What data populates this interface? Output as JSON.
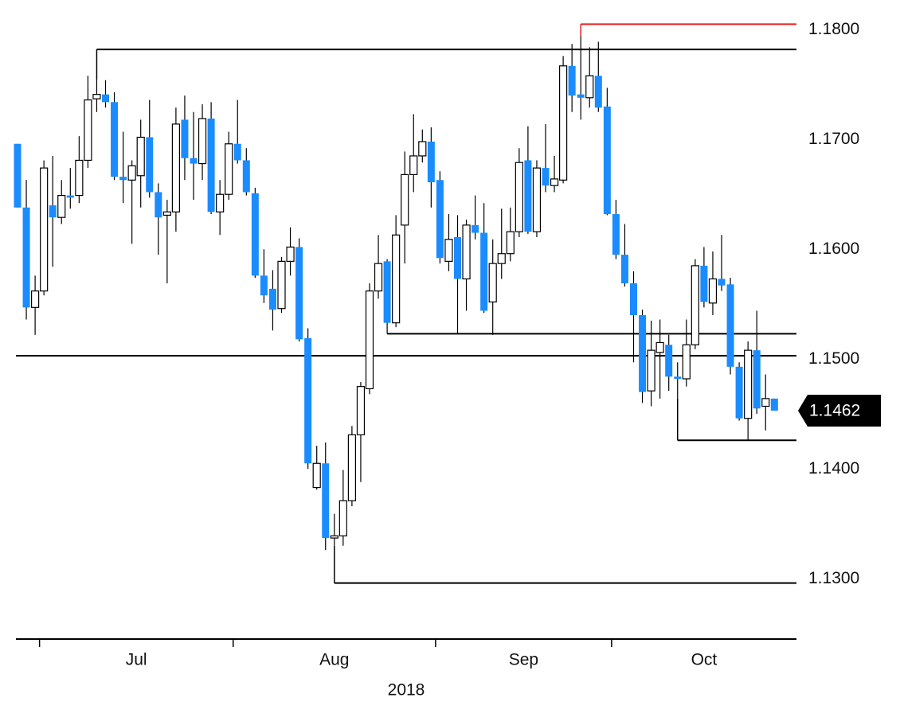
{
  "chart_data": {
    "type": "candlestick",
    "up_color": "#ffffff",
    "down_color": "#1a8cff",
    "ylim": [
      1.1254,
      1.1836
    ],
    "yticks": [
      {
        "value": 1.18,
        "label": "1.1800"
      },
      {
        "value": 1.17,
        "label": "1.1700"
      },
      {
        "value": 1.16,
        "label": "1.1600"
      },
      {
        "value": 1.15,
        "label": "1.1500"
      },
      {
        "value": 1.14,
        "label": "1.1400"
      },
      {
        "value": 1.13,
        "label": "1.1300"
      }
    ],
    "months": [
      {
        "label": "Jul",
        "start": 3
      },
      {
        "label": "Aug",
        "start": 25
      },
      {
        "label": "Sep",
        "start": 48
      },
      {
        "label": "Oct",
        "start": 68
      }
    ],
    "year": "2018",
    "last_price": {
      "value": 1.1462,
      "label": "1.1462"
    },
    "levels": [
      {
        "value": 1.1814,
        "color": "#e8201c",
        "start": 64
      },
      {
        "value": 1.1791,
        "color": "#000000",
        "start": 9
      },
      {
        "value": 1.1532,
        "color": "#000000",
        "start": 42
      },
      {
        "value": 1.1512,
        "color": "#000000",
        "start": 0
      },
      {
        "value": 1.1435,
        "color": "#000000",
        "start": 75
      },
      {
        "value": 1.1305,
        "color": "#000000",
        "start": 36
      }
    ],
    "open": [
      1.1705,
      1.1647,
      1.1556,
      1.1571,
      1.1649,
      1.1638,
      1.1658,
      1.1658,
      1.169,
      1.1746,
      1.175,
      1.1743,
      1.1675,
      1.1672,
      1.1676,
      1.1711,
      1.1661,
      1.164,
      1.1643,
      1.1727,
      1.1692,
      1.1687,
      1.1728,
      1.1643,
      1.1659,
      1.1705,
      1.169,
      1.166,
      1.1585,
      1.1573,
      1.1555,
      1.1598,
      1.1611,
      1.1528,
      1.1392,
      1.1414,
      1.1346,
      1.1348,
      1.138,
      1.144,
      1.1482,
      1.1571,
      1.1598,
      1.1542,
      1.1631,
      1.1677,
      1.1694,
      1.1707,
      1.1672,
      1.1598,
      1.162,
      1.1582,
      1.1631,
      1.1624,
      1.1561,
      1.1596,
      1.1605,
      1.1625,
      1.169,
      1.1625,
      1.1683,
      1.1667,
      1.1672,
      1.1776,
      1.175,
      1.1747,
      1.1767,
      1.1739,
      1.1641,
      1.1604,
      1.1578,
      1.1549,
      1.148,
      1.1515,
      1.1522,
      1.1493,
      1.1491,
      1.1522,
      1.1594,
      1.156,
      1.1582,
      1.1577,
      1.1502,
      1.1455,
      1.1517,
      1.1466,
      1.1473
    ],
    "high": [
      1.1705,
      1.1672,
      1.1585,
      1.169,
      1.1694,
      1.1672,
      1.1683,
      1.1712,
      1.1767,
      1.1763,
      1.1763,
      1.1752,
      1.1716,
      1.169,
      1.1727,
      1.1745,
      1.1669,
      1.1654,
      1.1738,
      1.1749,
      1.1734,
      1.1741,
      1.1743,
      1.1672,
      1.1716,
      1.1745,
      1.1701,
      1.1665,
      1.1609,
      1.159,
      1.1602,
      1.1629,
      1.1619,
      1.1537,
      1.143,
      1.1433,
      1.1368,
      1.1408,
      1.1448,
      1.1488,
      1.1578,
      1.1622,
      1.16,
      1.164,
      1.1698,
      1.1732,
      1.1718,
      1.172,
      1.168,
      1.1641,
      1.164,
      1.1636,
      1.1658,
      1.1651,
      1.1618,
      1.1646,
      1.1647,
      1.1701,
      1.1721,
      1.169,
      1.1723,
      1.1694,
      1.1785,
      1.1796,
      1.1803,
      1.1793,
      1.1798,
      1.1756,
      1.1654,
      1.1632,
      1.1589,
      1.1554,
      1.1544,
      1.1545,
      1.1531,
      1.1506,
      1.1545,
      1.16,
      1.1611,
      1.1607,
      1.1622,
      1.1583,
      1.1506,
      1.1525,
      1.1553,
      1.1495,
      1.1473
    ],
    "low": [
      1.1647,
      1.1545,
      1.1531,
      1.1567,
      1.1593,
      1.1632,
      1.1646,
      1.1651,
      1.1683,
      1.1734,
      1.1738,
      1.1672,
      1.1651,
      1.1614,
      1.1647,
      1.1656,
      1.1604,
      1.1578,
      1.1625,
      1.1672,
      1.1654,
      1.1672,
      1.1641,
      1.1622,
      1.1654,
      1.1687,
      1.1658,
      1.1583,
      1.156,
      1.1535,
      1.1551,
      1.1585,
      1.1525,
      1.1409,
      1.139,
      1.1335,
      1.1339,
      1.1339,
      1.1375,
      1.1397,
      1.1477,
      1.1564,
      1.1532,
      1.1538,
      1.1596,
      1.1661,
      1.1688,
      1.1647,
      1.1596,
      1.1589,
      1.1532,
      1.1553,
      1.1618,
      1.1551,
      1.1531,
      1.1582,
      1.1598,
      1.162,
      1.1623,
      1.162,
      1.1661,
      1.1661,
      1.1669,
      1.1734,
      1.1727,
      1.1738,
      1.1734,
      1.164,
      1.16,
      1.1575,
      1.1506,
      1.1469,
      1.1466,
      1.1473,
      1.148,
      1.1473,
      1.1484,
      1.1518,
      1.1556,
      1.1549,
      1.1571,
      1.1495,
      1.1453,
      1.1435,
      1.1459,
      1.1444,
      1.1462
    ],
    "close": [
      1.1647,
      1.1556,
      1.1571,
      1.1683,
      1.1638,
      1.1658,
      1.1656,
      1.169,
      1.1745,
      1.175,
      1.1743,
      1.1675,
      1.1672,
      1.1685,
      1.1711,
      1.1661,
      1.1638,
      1.1643,
      1.1723,
      1.1692,
      1.1687,
      1.1728,
      1.1643,
      1.1659,
      1.1705,
      1.169,
      1.1661,
      1.1585,
      1.1567,
      1.1554,
      1.1598,
      1.1611,
      1.1527,
      1.1414,
      1.1414,
      1.1346,
      1.1348,
      1.138,
      1.144,
      1.1484,
      1.1571,
      1.1596,
      1.1542,
      1.1622,
      1.1677,
      1.1694,
      1.1707,
      1.167,
      1.1601,
      1.1618,
      1.1582,
      1.1631,
      1.1624,
      1.1553,
      1.1596,
      1.1605,
      1.1625,
      1.1688,
      1.1625,
      1.1683,
      1.1667,
      1.1673,
      1.1776,
      1.1749,
      1.1747,
      1.1767,
      1.1738,
      1.1641,
      1.1604,
      1.1578,
      1.1549,
      1.1479,
      1.1517,
      1.1524,
      1.1493,
      1.1491,
      1.1522,
      1.1594,
      1.1561,
      1.1582,
      1.1576,
      1.1502,
      1.1455,
      1.1517,
      1.1464,
      1.1473,
      1.1462
    ]
  }
}
